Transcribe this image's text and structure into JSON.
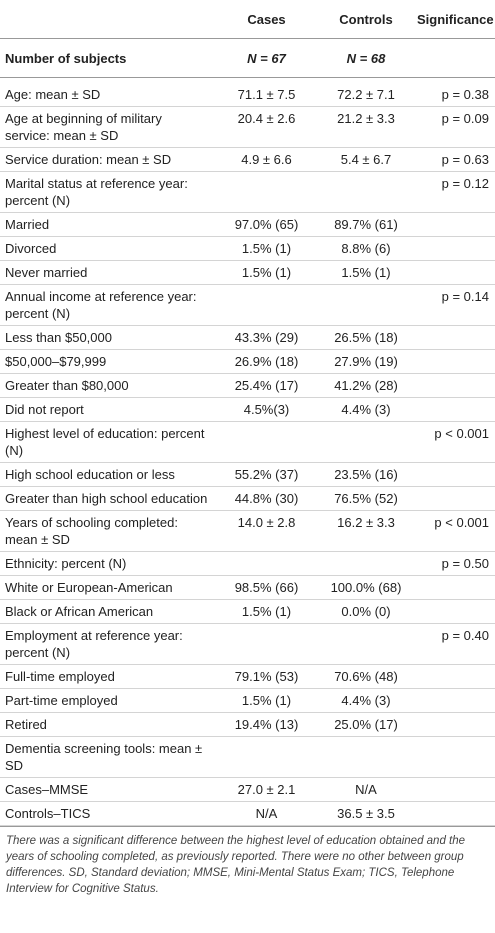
{
  "table": {
    "header": [
      null,
      "Cases",
      "Controls",
      "Significance"
    ],
    "subjects": [
      "Number of subjects",
      "N = 67",
      "N = 68",
      null
    ],
    "rows": [
      [
        "Age: mean ± SD",
        "71.1 ± 7.5",
        "72.2 ± 7.1",
        "p = 0.38"
      ],
      [
        "Age at beginning of military service: mean ± SD",
        "20.4 ± 2.6",
        "21.2 ± 3.3",
        "p = 0.09"
      ],
      [
        "Service duration: mean ± SD",
        "4.9 ± 6.6",
        "5.4 ± 6.7",
        "p = 0.63"
      ],
      [
        "Marital status at reference year: percent (N)",
        null,
        null,
        "p = 0.12"
      ],
      [
        "Married",
        "97.0% (65)",
        "89.7% (61)",
        null
      ],
      [
        "Divorced",
        "1.5% (1)",
        "8.8% (6)",
        null
      ],
      [
        "Never married",
        "1.5% (1)",
        "1.5% (1)",
        null
      ],
      [
        "Annual income at reference year: percent (N)",
        null,
        null,
        "p = 0.14"
      ],
      [
        "Less than $50,000",
        "43.3% (29)",
        "26.5% (18)",
        null
      ],
      [
        "$50,000–$79,999",
        "26.9% (18)",
        "27.9% (19)",
        null
      ],
      [
        "Greater than $80,000",
        "25.4% (17)",
        "41.2% (28)",
        null
      ],
      [
        "Did not report",
        "4.5%(3)",
        "4.4% (3)",
        null
      ],
      [
        "Highest level of education: percent (N)",
        null,
        null,
        "p < 0.001"
      ],
      [
        "High school education or less",
        "55.2% (37)",
        "23.5% (16)",
        null
      ],
      [
        "Greater than high school education",
        "44.8% (30)",
        "76.5% (52)",
        null
      ],
      [
        "Years of schooling completed: mean ± SD",
        "14.0 ± 2.8",
        "16.2 ± 3.3",
        "p < 0.001"
      ],
      [
        "Ethnicity: percent (N)",
        null,
        null,
        "p = 0.50"
      ],
      [
        "White or European-American",
        "98.5% (66)",
        "100.0% (68)",
        null
      ],
      [
        "Black or African American",
        "1.5% (1)",
        "0.0% (0)",
        null
      ],
      [
        "Employment at reference year: percent (N)",
        null,
        null,
        "p = 0.40"
      ],
      [
        "Full-time employed",
        "79.1% (53)",
        "70.6% (48)",
        null
      ],
      [
        "Part-time employed",
        "1.5% (1)",
        "4.4% (3)",
        null
      ],
      [
        "Retired",
        "19.4% (13)",
        "25.0% (17)",
        null
      ],
      [
        "Dementia screening tools: mean ± SD",
        null,
        null,
        null
      ],
      [
        "Cases–MMSE",
        "27.0 ± 2.1",
        "N/A",
        null
      ],
      [
        "Controls–TICS",
        "N/A",
        "36.5 ± 3.5",
        null
      ]
    ]
  },
  "footnote": "There was a significant difference between the highest level of education obtained and the years of schooling completed, as previously reported. There were no other between group differences. SD, Standard deviation; MMSE, Mini-Mental Status Exam; TICS, Telephone Interview for Cognitive Status."
}
